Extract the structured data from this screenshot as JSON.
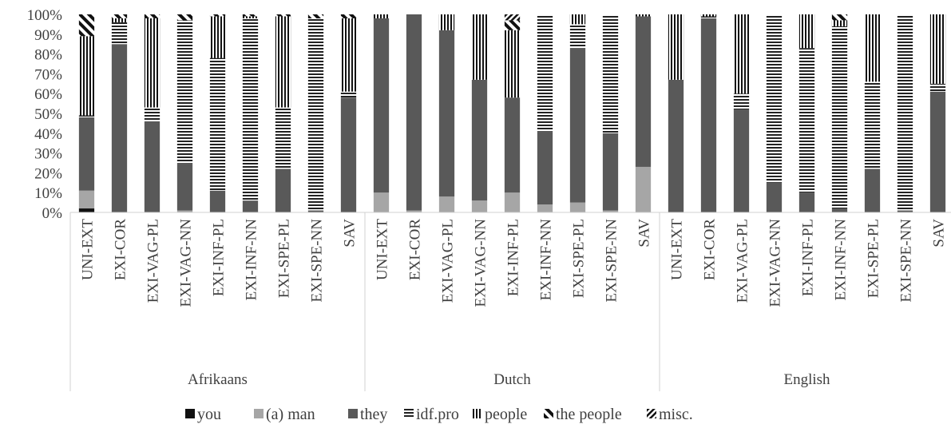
{
  "chart_data": {
    "type": "bar",
    "stacked": true,
    "percent_stacked": true,
    "title": "",
    "xlabel": "",
    "ylabel": "",
    "ylim": [
      0,
      100
    ],
    "yticks": [
      "0%",
      "10%",
      "20%",
      "30%",
      "40%",
      "50%",
      "60%",
      "70%",
      "80%",
      "90%",
      "100%"
    ],
    "grid": false,
    "legend_position": "bottom",
    "groups": [
      {
        "name": "Afrikaans",
        "categories": [
          "UNI-EXT",
          "EXI-COR",
          "EXI-VAG-PL",
          "EXI-VAG-NN",
          "EXI-INF-PL",
          "EXI-INF-NN",
          "EXI-SPE-PL",
          "EXI-SPE-NN",
          "SAV"
        ]
      },
      {
        "name": "Dutch",
        "categories": [
          "UNI-EXT",
          "EXI-COR",
          "EXI-VAG-PL",
          "EXI-VAG-NN",
          "EXI-INF-PL",
          "EXI-INF-NN",
          "EXI-SPE-PL",
          "EXI-SPE-NN",
          "SAV"
        ]
      },
      {
        "name": "English",
        "categories": [
          "UNI-EXT",
          "EXI-COR",
          "EXI-VAG-PL",
          "EXI-VAG-NN",
          "EXI-INF-PL",
          "EXI-INF-NN",
          "EXI-SPE-PL",
          "EXI-SPE-NN",
          "SAV"
        ]
      }
    ],
    "series": [
      {
        "name": "you",
        "pattern": "solid-black",
        "values": [
          2,
          0,
          0,
          0,
          0,
          0,
          0,
          0,
          0,
          0,
          0,
          0,
          0,
          0,
          0,
          0,
          0,
          0,
          0,
          0,
          0,
          0,
          0,
          0,
          0,
          0,
          0
        ]
      },
      {
        "name": "(a) man",
        "pattern": "solid-light",
        "values": [
          9,
          0,
          0,
          1,
          0,
          0,
          0,
          0,
          0,
          10,
          1,
          8,
          6,
          10,
          4,
          5,
          1,
          23,
          0,
          0,
          0,
          0,
          0,
          0,
          0,
          0,
          0
        ]
      },
      {
        "name": "they",
        "pattern": "solid-dark",
        "values": [
          37,
          85,
          46,
          24,
          11,
          6,
          22,
          1,
          58,
          88,
          99,
          84,
          61,
          48,
          37,
          78,
          39,
          76,
          67,
          98,
          52,
          15,
          10,
          2,
          22,
          1,
          61
        ]
      },
      {
        "name": "idf.pro",
        "pattern": "horizontal",
        "values": [
          1,
          11,
          7,
          72,
          67,
          92,
          31,
          97,
          3,
          0,
          0,
          0,
          0,
          0,
          59,
          12,
          60,
          0,
          0,
          1,
          8,
          85,
          73,
          92,
          44,
          99,
          4
        ]
      },
      {
        "name": "people",
        "pattern": "vertical",
        "values": [
          40,
          2,
          45,
          0,
          21,
          1,
          46,
          0,
          37,
          2,
          0,
          8,
          33,
          34,
          0,
          5,
          0,
          1,
          33,
          1,
          40,
          0,
          17,
          3,
          34,
          0,
          35
        ]
      },
      {
        "name": "the people",
        "pattern": "diagonal-up",
        "values": [
          11,
          2,
          2,
          3,
          1,
          1,
          1,
          2,
          2,
          0,
          0,
          0,
          0,
          5,
          0,
          0,
          0,
          0,
          0,
          0,
          0,
          0,
          0,
          3,
          0,
          0,
          0
        ]
      },
      {
        "name": "misc.",
        "pattern": "diagonal-down",
        "values": [
          0,
          0,
          0,
          0,
          0,
          0,
          0,
          0,
          0,
          0,
          0,
          0,
          0,
          3,
          0,
          0,
          0,
          0,
          0,
          0,
          0,
          0,
          0,
          0,
          0,
          0,
          0
        ]
      }
    ]
  }
}
